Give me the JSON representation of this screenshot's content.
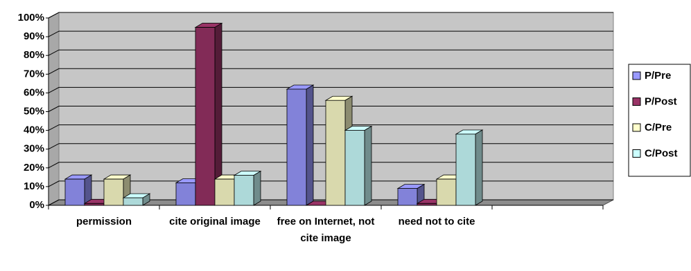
{
  "chart_data": {
    "type": "bar3d",
    "categories": [
      "permission",
      "cite original image",
      "free on Internet, not cite image",
      "need not to cite",
      null
    ],
    "series": [
      {
        "name": "P/Pre",
        "color": "#9999ff",
        "values": [
          14,
          12,
          62,
          9,
          null
        ]
      },
      {
        "name": "P/Post",
        "color": "#993366",
        "values": [
          1,
          95,
          0,
          1,
          null
        ]
      },
      {
        "name": "C/Pre",
        "color": "#ffffcc",
        "values": [
          14,
          14,
          56,
          14,
          null
        ]
      },
      {
        "name": "C/Post",
        "color": "#ccffff",
        "values": [
          4,
          16,
          40,
          38,
          null
        ]
      }
    ],
    "ylim": [
      0,
      100
    ],
    "yticks": [
      {
        "value": 0,
        "label": "0%"
      },
      {
        "value": 10,
        "label": "10%"
      },
      {
        "value": 20,
        "label": "20%"
      },
      {
        "value": 30,
        "label": "30%"
      },
      {
        "value": 40,
        "label": "40%"
      },
      {
        "value": 50,
        "label": "50%"
      },
      {
        "value": 60,
        "label": "60%"
      },
      {
        "value": 70,
        "label": "70%"
      },
      {
        "value": 80,
        "label": "80%"
      },
      {
        "value": 90,
        "label": "90%"
      },
      {
        "value": 100,
        "label": "100%"
      }
    ],
    "grid": true,
    "legend": "right"
  }
}
